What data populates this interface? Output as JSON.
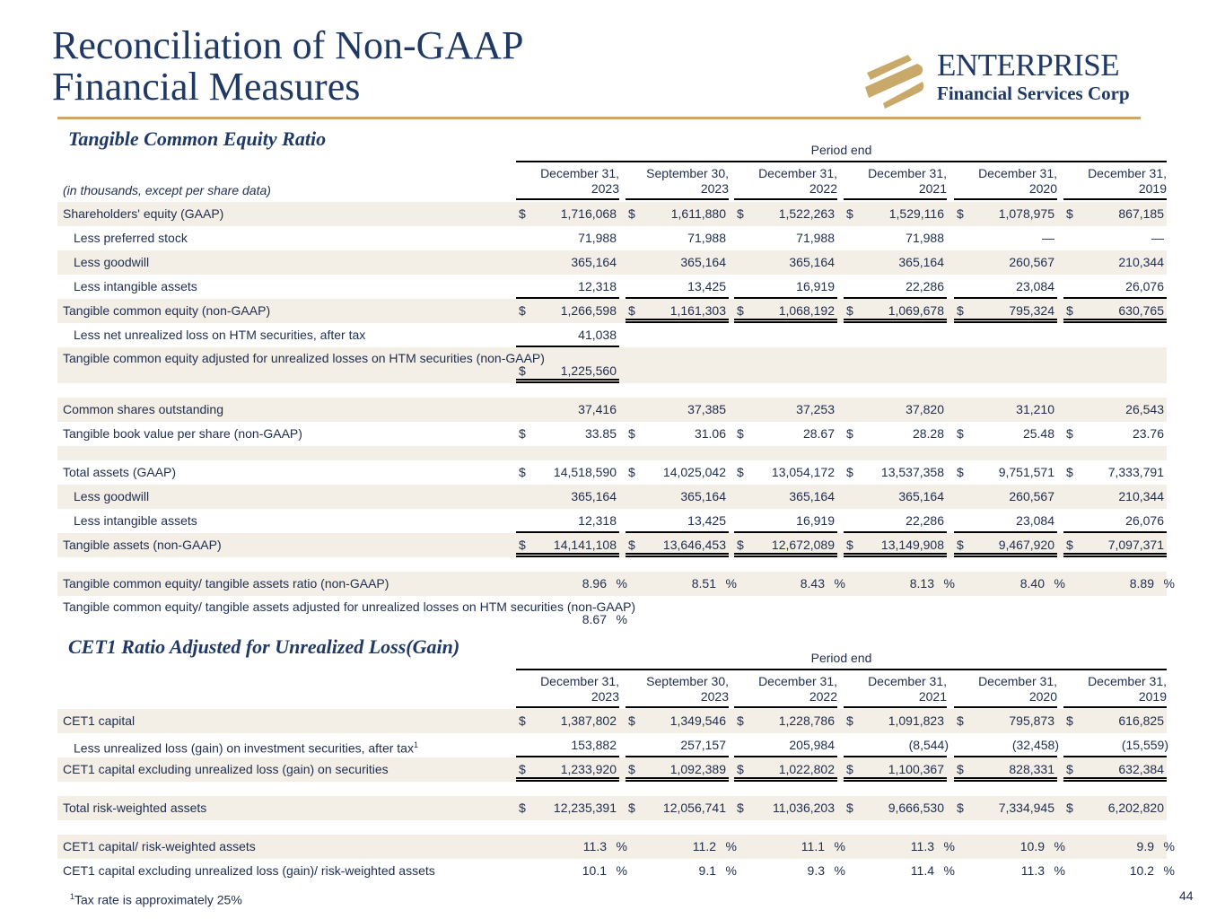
{
  "title_line1": "Reconciliation of Non-GAAP",
  "title_line2": "Financial Measures",
  "logo": {
    "word": "ENTERPRISE",
    "sub": "Financial Services Corp",
    "brand_color": "#1f3864",
    "accent_color": "#c9a96a"
  },
  "table1": {
    "section_title": "Tangible Common Equity Ratio",
    "period_label": "Period end",
    "units_label": "(in thousands, except per share data)",
    "columns": [
      [
        "December 31,",
        "2023"
      ],
      [
        "September 30,",
        "2023"
      ],
      [
        "December 31,",
        "2022"
      ],
      [
        "December 31,",
        "2021"
      ],
      [
        "December 31,",
        "2020"
      ],
      [
        "December 31,",
        "2019"
      ]
    ],
    "rows": [
      {
        "label": "Shareholders' equity (GAAP)",
        "values": [
          "$ 1,716,068",
          "$ 1,611,880",
          "$ 1,522,263",
          "$ 1,529,116",
          "$ 1,078,975",
          "$ 867,185"
        ]
      },
      {
        "label": "Less preferred stock",
        "indent": true,
        "values": [
          "71,988",
          "71,988",
          "71,988",
          "71,988",
          "—",
          "—"
        ]
      },
      {
        "label": "Less goodwill",
        "indent": true,
        "values": [
          "365,164",
          "365,164",
          "365,164",
          "365,164",
          "260,567",
          "210,344"
        ]
      },
      {
        "label": "Less intangible assets",
        "indent": true,
        "values": [
          "12,318",
          "13,425",
          "16,919",
          "22,286",
          "23,084",
          "26,076"
        ],
        "ul": [
          "single",
          "single",
          "single",
          "single",
          "single",
          "single"
        ]
      },
      {
        "label": "Tangible common equity (non-GAAP)",
        "values": [
          "$ 1,266,598",
          "$ 1,161,303",
          "$ 1,068,192",
          "$ 1,069,678",
          "$ 795,324",
          "$ 630,765"
        ],
        "ul": [
          "",
          "double",
          "double",
          "double",
          "double",
          "double"
        ]
      },
      {
        "label": "Less net unrealized loss on HTM securities, after tax",
        "indent": true,
        "values": [
          "41,038"
        ],
        "ul": [
          "single"
        ]
      },
      {
        "label": "Tangible common equity adjusted for unrealized losses on HTM securities (non-GAAP)",
        "tall": true,
        "values": [
          "$ 1,225,560"
        ],
        "ul": [
          "double"
        ]
      },
      {
        "spacer": true
      },
      {
        "label": "Common shares outstanding",
        "values": [
          "37,416",
          "37,385",
          "37,253",
          "37,820",
          "31,210",
          "26,543"
        ]
      },
      {
        "label": "Tangible book value per share (non-GAAP)",
        "values": [
          "$ 33.85",
          "$ 31.06",
          "$ 28.67",
          "$ 28.28",
          "$ 25.48",
          "$ 23.76"
        ]
      },
      {
        "spacer": true
      },
      {
        "label": "Total assets (GAAP)",
        "values": [
          "$ 14,518,590",
          "$ 14,025,042",
          "$ 13,054,172",
          "$ 13,537,358",
          "$ 9,751,571",
          "$ 7,333,791"
        ]
      },
      {
        "label": "Less goodwill",
        "indent": true,
        "values": [
          "365,164",
          "365,164",
          "365,164",
          "365,164",
          "260,567",
          "210,344"
        ]
      },
      {
        "label": "Less intangible assets",
        "indent": true,
        "values": [
          "12,318",
          "13,425",
          "16,919",
          "22,286",
          "23,084",
          "26,076"
        ],
        "ul": [
          "single",
          "single",
          "single",
          "single",
          "single",
          "single"
        ]
      },
      {
        "label": "Tangible assets (non-GAAP)",
        "values": [
          "$ 14,141,108",
          "$ 13,646,453",
          "$ 12,672,089",
          "$ 13,149,908",
          "$ 9,467,920",
          "$ 7,097,371"
        ],
        "ul": [
          "double",
          "double",
          "double",
          "double",
          "double",
          "double"
        ]
      },
      {
        "spacer": true
      },
      {
        "label": "Tangible common equity/ tangible assets ratio (non-GAAP)",
        "values": [
          "8.96 %",
          "8.51 %",
          "8.43 %",
          "8.13 %",
          "8.40 %",
          "8.89 %"
        ]
      },
      {
        "label": "Tangible common equity/ tangible assets adjusted for unrealized losses on HTM securities (non-GAAP)",
        "tall": true,
        "values": [
          "8.67 %"
        ]
      }
    ]
  },
  "table2": {
    "section_title": "CET1 Ratio Adjusted for Unrealized Loss(Gain)",
    "period_label": "Period end",
    "columns": [
      [
        "December 31,",
        "2023"
      ],
      [
        "September 30,",
        "2023"
      ],
      [
        "December 31,",
        "2022"
      ],
      [
        "December 31,",
        "2021"
      ],
      [
        "December 31,",
        "2020"
      ],
      [
        "December 31,",
        "2019"
      ]
    ],
    "rows": [
      {
        "label": "CET1 capital",
        "values": [
          "$ 1,387,802",
          "$ 1,349,546",
          "$ 1,228,786",
          "$ 1,091,823",
          "$ 795,873",
          "$ 616,825"
        ]
      },
      {
        "label": "Less unrealized loss (gain) on investment securities, after tax",
        "sup": "1",
        "indent": true,
        "values": [
          "153,882",
          "257,157",
          "205,984",
          "(8,544)",
          "(32,458)",
          "(15,559)"
        ],
        "ul": [
          "single",
          "single",
          "single",
          "single",
          "single",
          "single"
        ]
      },
      {
        "label": "CET1 capital excluding unrealized loss (gain) on securities",
        "values": [
          "$ 1,233,920",
          "$ 1,092,389",
          "$ 1,022,802",
          "$ 1,100,367",
          "$ 828,331",
          "$ 632,384"
        ],
        "ul": [
          "double",
          "double",
          "double",
          "double",
          "double",
          "double"
        ]
      },
      {
        "spacer": true
      },
      {
        "label": "Total risk-weighted assets",
        "values": [
          "$ 12,235,391",
          "$ 12,056,741",
          "$ 11,036,203",
          "$ 9,666,530",
          "$ 7,334,945",
          "$ 6,202,820"
        ]
      },
      {
        "spacer": true
      },
      {
        "label": "CET1 capital/ risk-weighted assets",
        "values": [
          "11.3 %",
          "11.2 %",
          "11.1 %",
          "11.3 %",
          "10.9 %",
          "9.9 %"
        ]
      },
      {
        "label": "CET1 capital excluding unrealized loss (gain)/ risk-weighted assets",
        "values": [
          "10.1 %",
          "9.1 %",
          "9.3 %",
          "11.4 %",
          "11.3 %",
          "10.2 %"
        ]
      }
    ]
  },
  "footnote": {
    "marker": "1",
    "text": "Tax rate is approximately 25%"
  },
  "page_number": "44"
}
